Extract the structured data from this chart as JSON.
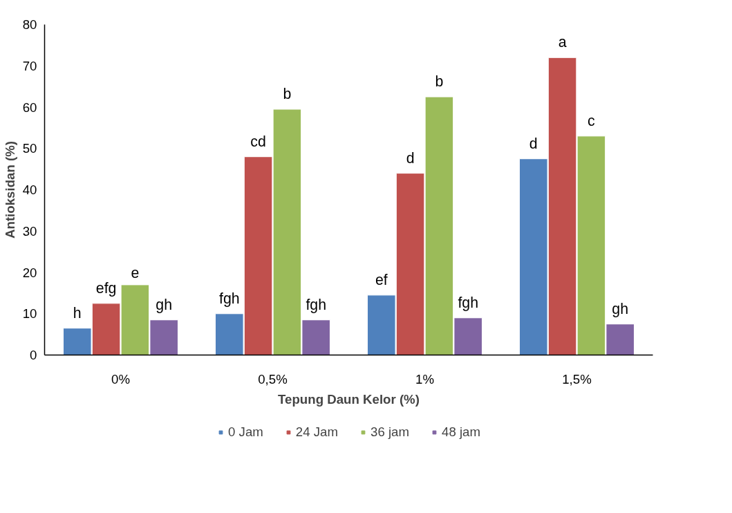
{
  "chart_data": {
    "type": "bar",
    "xlabel": "Tepung Daun Kelor (%)",
    "ylabel": "Antioksidan (%)",
    "categories": [
      "0%",
      "0,5%",
      "1%",
      "1,5%"
    ],
    "series": [
      {
        "name": "0 Jam",
        "color": "#4f81bd",
        "values": [
          6.5,
          10,
          14.5,
          47.5
        ],
        "value_labels": [
          "h",
          "fgh",
          "ef",
          "d"
        ]
      },
      {
        "name": "24 Jam",
        "color": "#c0504d",
        "values": [
          12.5,
          48,
          44,
          72
        ],
        "value_labels": [
          "efg",
          "cd",
          "d",
          "a"
        ]
      },
      {
        "name": "36 jam",
        "color": "#9bbb59",
        "values": [
          17,
          59.5,
          62.5,
          53
        ],
        "value_labels": [
          "e",
          "b",
          "b",
          "c"
        ]
      },
      {
        "name": "48 jam",
        "color": "#8064a2",
        "values": [
          8.5,
          8.5,
          9,
          7.5
        ],
        "value_labels": [
          "gh",
          "fgh",
          "fgh",
          "gh"
        ]
      }
    ],
    "ylim": [
      0,
      80
    ],
    "yticks": [
      0,
      10,
      20,
      30,
      40,
      50,
      60,
      70,
      80
    ],
    "grid": false,
    "legend": "bottom"
  }
}
